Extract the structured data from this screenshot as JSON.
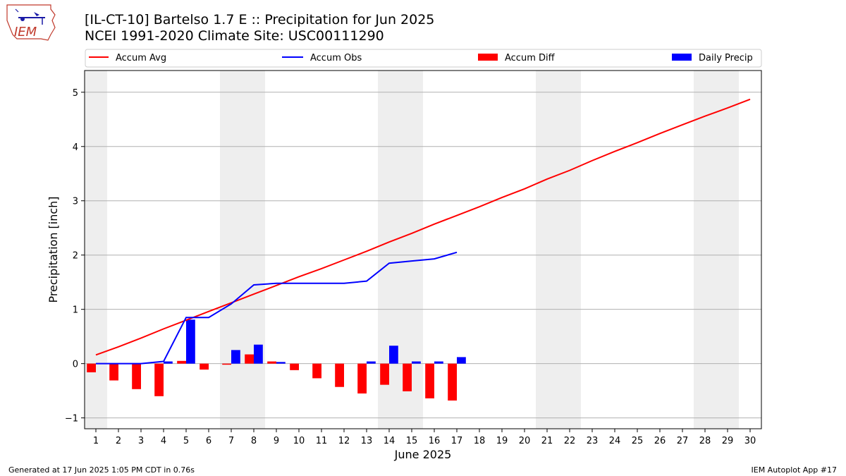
{
  "title_line1": "[IL-CT-10] Bartelso 1.7 E :: Precipitation for Jun 2025",
  "title_line2": "NCEI 1991-2020 Climate Site: USC00111290",
  "logo_text": "IEM",
  "footer_left": "Generated at 17 Jun 2025 1:05 PM CDT in 0.76s",
  "footer_right": "IEM Autoplot App #17",
  "colors": {
    "avg": "#ff0000",
    "obs": "#0000ff",
    "diff": "#ff0000",
    "daily": "#0000ff",
    "weekend": "#eeeeee",
    "grid": "#b0b0b0"
  },
  "chart_data": {
    "type": "bar",
    "xlabel": "June 2025",
    "ylabel": "Precipitation [inch]",
    "ylim": [
      -1.2,
      5.4
    ],
    "xlim": [
      0.5,
      30.5
    ],
    "yticks": [
      -1,
      0,
      1,
      2,
      3,
      4,
      5
    ],
    "days": [
      1,
      2,
      3,
      4,
      5,
      6,
      7,
      8,
      9,
      10,
      11,
      12,
      13,
      14,
      15,
      16,
      17,
      18,
      19,
      20,
      21,
      22,
      23,
      24,
      25,
      26,
      27,
      28,
      29,
      30
    ],
    "weekend_days": [
      1,
      7,
      8,
      14,
      15,
      21,
      22,
      28,
      29
    ],
    "grid": "horizontal",
    "legend": {
      "placement": "top",
      "entries": [
        "Accum Avg",
        "Accum Obs",
        "Accum Diff",
        "Daily Precip"
      ]
    },
    "series": [
      {
        "name": "Accum Avg",
        "kind": "line",
        "values": [
          0.16,
          0.31,
          0.47,
          0.64,
          0.8,
          0.96,
          1.12,
          1.28,
          1.44,
          1.6,
          1.75,
          1.91,
          2.07,
          2.24,
          2.4,
          2.57,
          2.73,
          2.89,
          3.06,
          3.22,
          3.4,
          3.56,
          3.74,
          3.91,
          4.07,
          4.24,
          4.4,
          4.56,
          4.71,
          4.87
        ]
      },
      {
        "name": "Accum Obs",
        "kind": "line",
        "values": [
          0.0,
          0.0,
          0.0,
          0.04,
          0.85,
          0.85,
          1.1,
          1.45,
          1.48,
          1.48,
          1.48,
          1.48,
          1.52,
          1.85,
          1.89,
          1.93,
          2.05
        ]
      },
      {
        "name": "Accum Diff",
        "kind": "bar",
        "values": [
          -0.16,
          -0.31,
          -0.47,
          -0.6,
          0.05,
          -0.11,
          -0.02,
          0.17,
          0.04,
          -0.12,
          -0.27,
          -0.43,
          -0.55,
          -0.39,
          -0.51,
          -0.64,
          -0.68
        ]
      },
      {
        "name": "Daily Precip",
        "kind": "bar",
        "values": [
          0.0,
          0.0,
          0.0,
          0.04,
          0.81,
          0.0,
          0.25,
          0.35,
          0.03,
          0.0,
          0.0,
          0.0,
          0.04,
          0.33,
          0.04,
          0.04,
          0.12
        ]
      }
    ]
  }
}
